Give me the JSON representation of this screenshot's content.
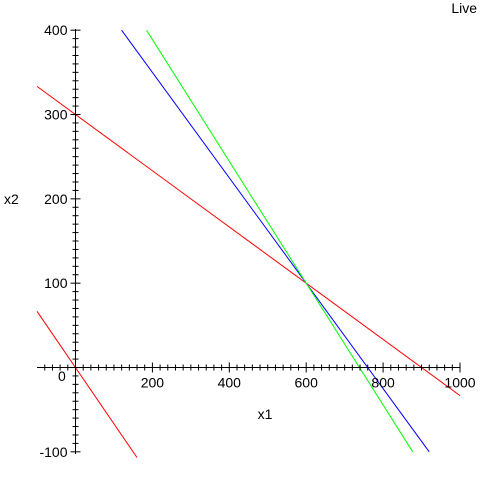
{
  "status_label": "Live",
  "chart_data": {
    "type": "line",
    "title": "",
    "xlabel": "x1",
    "ylabel": "x2",
    "xlim": [
      -100,
      1000
    ],
    "ylim": [
      -100,
      400
    ],
    "xticks": [
      200,
      400,
      600,
      800,
      1000
    ],
    "yticks": [
      -100,
      100,
      200,
      300,
      400
    ],
    "origin_label": "0",
    "grid": false,
    "series": [
      {
        "color": "#ff0000",
        "x": [
          -100,
          1000
        ],
        "y": [
          333.3,
          -33.3
        ]
      },
      {
        "color": "#0000ff",
        "x": [
          120,
          920
        ],
        "y": [
          400,
          -100
        ]
      },
      {
        "color": "#00ff00",
        "x": [
          184.6,
          876.9
        ],
        "y": [
          400,
          -100
        ]
      },
      {
        "color": "#ff0000",
        "x": [
          -100,
          160
        ],
        "y": [
          66.7,
          -106.7
        ]
      }
    ]
  }
}
